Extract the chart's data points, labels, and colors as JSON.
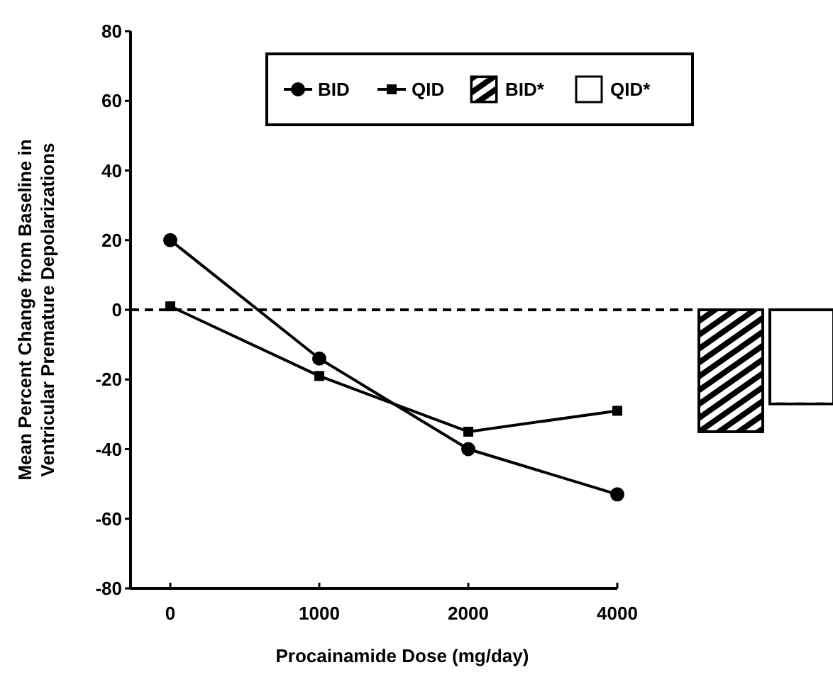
{
  "chart_data": {
    "type": "line",
    "xlabel": "Procainamide Dose (mg/day)",
    "ylabel": "Mean Percent Change from Baseline in\nVentricular Premature Depolarizations",
    "categories": [
      "0",
      "1000",
      "2000",
      "4000",
      null
    ],
    "ylim": [
      -80,
      80
    ],
    "yticks": [
      -80,
      -60,
      -40,
      -20,
      0,
      20,
      40,
      60,
      80
    ],
    "series": [
      {
        "name": "BID",
        "marker": "circle",
        "color": "#000000",
        "values": [
          20,
          -14,
          -40,
          -53,
          null
        ]
      },
      {
        "name": "QID",
        "marker": "square",
        "color": "#000000",
        "values": [
          1,
          -19,
          -35,
          -29,
          null
        ]
      },
      {
        "name": "BID*",
        "type": "bar",
        "color": "#000000",
        "values": [
          null,
          null,
          null,
          null,
          -35
        ]
      },
      {
        "name": "QID*",
        "type": "bar",
        "color": "#ffffff",
        "values": [
          null,
          null,
          null,
          null,
          -27
        ]
      }
    ],
    "ref_lines": [
      {
        "axis": "y",
        "value": 0,
        "line_style": "dashed",
        "color": "#000000"
      }
    ],
    "legend": "top",
    "grid": false
  }
}
